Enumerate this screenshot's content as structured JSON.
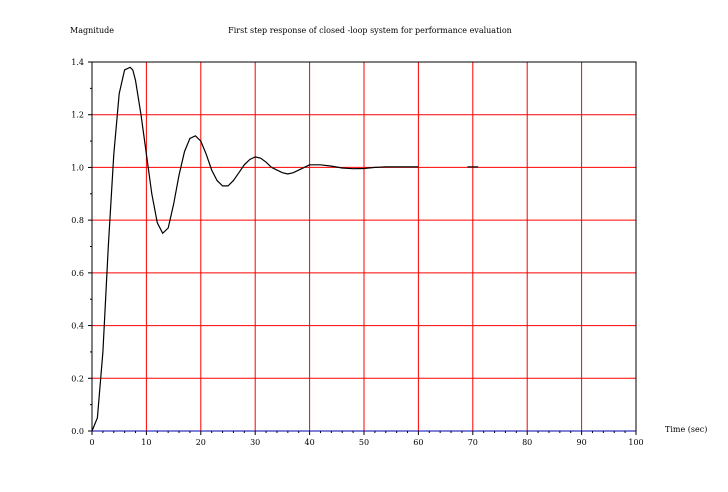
{
  "chart_data": {
    "type": "line",
    "title": "First step response of closed -loop system for performance evaluation",
    "xlabel": "Time (sec)",
    "ylabel": "Magnitude",
    "xlim": [
      0,
      100
    ],
    "ylim": [
      0,
      1.4
    ],
    "x_ticks": [
      "0",
      "10",
      "20",
      "30",
      "40",
      "50",
      "60",
      "70",
      "80",
      "90",
      "100"
    ],
    "y_ticks": [
      "0.0",
      "0.2",
      "0.4",
      "0.6",
      "0.8",
      "1.0",
      "1.2",
      "1.4"
    ],
    "grid": true,
    "grid_color": "#ff0000",
    "line_color": "#000000",
    "baseline_color": "#0000aa",
    "series": [
      {
        "x": [
          0,
          1,
          2,
          3,
          4,
          5,
          6,
          7,
          7.5,
          8,
          9,
          10,
          11,
          12,
          13,
          14,
          15,
          16,
          17,
          18,
          19,
          20,
          21,
          22,
          23,
          24,
          25,
          26,
          27,
          28,
          29,
          30,
          31,
          32,
          33,
          34,
          35,
          36,
          37,
          38,
          39,
          40,
          42,
          44,
          46,
          48,
          50,
          52,
          54,
          56,
          58,
          60,
          61
        ],
        "y": [
          0.0,
          0.05,
          0.3,
          0.7,
          1.05,
          1.28,
          1.37,
          1.38,
          1.37,
          1.33,
          1.2,
          1.05,
          0.9,
          0.79,
          0.75,
          0.77,
          0.86,
          0.97,
          1.06,
          1.11,
          1.12,
          1.1,
          1.05,
          0.99,
          0.95,
          0.93,
          0.93,
          0.95,
          0.98,
          1.01,
          1.03,
          1.04,
          1.035,
          1.02,
          1.0,
          0.99,
          0.98,
          0.975,
          0.98,
          0.99,
          1.0,
          1.01,
          1.01,
          1.005,
          0.998,
          0.995,
          0.996,
          1.0,
          1.002,
          1.002,
          1.002,
          1.002,
          null
        ]
      },
      {
        "x": [
          69,
          70,
          71
        ],
        "y": [
          1.002,
          1.002,
          1.002
        ]
      }
    ]
  }
}
